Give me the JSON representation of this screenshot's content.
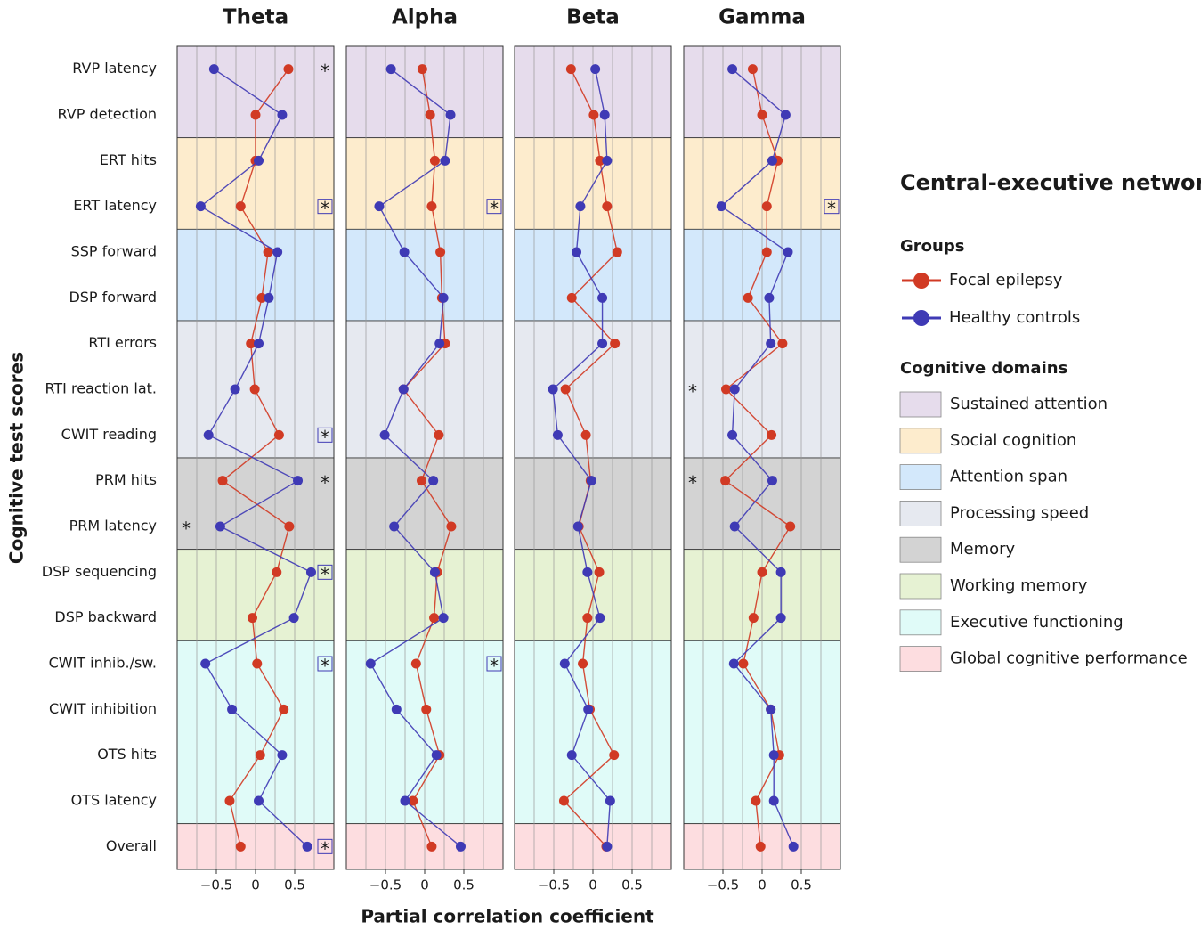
{
  "chart_data": {
    "type": "line",
    "orientation": "horizontal",
    "xlabel": "Partial correlation coefficient",
    "ylabel": "Cognitive test scores",
    "categories": [
      "RVP latency",
      "RVP detection",
      "ERT hits",
      "ERT latency",
      "SSP forward",
      "DSP forward",
      "RTI errors",
      "RTI reaction lat.",
      "CWIT reading",
      "PRM hits",
      "PRM latency",
      "DSP sequencing",
      "DSP backward",
      "CWIT inhib./sw.",
      "CWIT inhibition",
      "OTS hits",
      "OTS latency",
      "Overall"
    ],
    "xlim": [
      -1,
      1
    ],
    "xticks": [
      {
        "value": -0.5,
        "label": "−0.5"
      },
      0,
      0.5
    ],
    "xgrid": [
      -0.75,
      -0.5,
      -0.25,
      0,
      0.25,
      0.5,
      0.75
    ],
    "groups": [
      {
        "name": "Focal epilepsy",
        "color": "#d13a24"
      },
      {
        "name": "Healthy controls",
        "color": "#3f3ab5"
      }
    ],
    "domains": [
      {
        "name": "Sustained attention",
        "color": "#e6dcec",
        "rows": 2
      },
      {
        "name": "Social cognition",
        "color": "#fdeccd",
        "rows": 2
      },
      {
        "name": "Attention span",
        "color": "#d3e8fb",
        "rows": 2
      },
      {
        "name": "Processing speed",
        "color": "#e6e9f0",
        "rows": 3
      },
      {
        "name": "Memory",
        "color": "#d3d3d3",
        "rows": 2
      },
      {
        "name": "Working memory",
        "color": "#e6f2d3",
        "rows": 2
      },
      {
        "name": "Executive functioning",
        "color": "#e0fbf8",
        "rows": 4
      },
      {
        "name": "Global cognitive performance",
        "color": "#fddde0",
        "rows": 1
      }
    ],
    "legend": {
      "title": "Central-executive network",
      "groups_title": "Groups",
      "domains_title": "Cognitive domains"
    },
    "panels": [
      {
        "title": "Theta",
        "series": [
          {
            "values": [
              0.42,
              0,
              0,
              -0.19,
              0.16,
              0.08,
              -0.06,
              -0.01,
              0.3,
              -0.42,
              0.43,
              0.27,
              -0.04,
              0.02,
              0.36,
              0.06,
              -0.33,
              -0.19
            ]
          },
          {
            "values": [
              -0.53,
              0.34,
              0.04,
              -0.7,
              0.28,
              0.17,
              0.04,
              -0.26,
              -0.6,
              0.54,
              -0.45,
              0.71,
              0.49,
              -0.64,
              -0.3,
              0.34,
              0.04,
              0.66
            ]
          }
        ],
        "annotations": [
          {
            "row": 0,
            "series": 1,
            "text": "*",
            "boxed": false
          },
          {
            "row": 3,
            "series": 1,
            "text": "*",
            "boxed": true
          },
          {
            "row": 8,
            "series": 1,
            "text": "*",
            "boxed": true
          },
          {
            "row": 9,
            "series": 1,
            "text": "*",
            "boxed": false
          },
          {
            "row": 10,
            "series": 0,
            "text": "*",
            "boxed": false
          },
          {
            "row": 11,
            "series": 1,
            "text": "*",
            "boxed": true
          },
          {
            "row": 13,
            "series": 1,
            "text": "*",
            "boxed": true
          },
          {
            "row": 17,
            "series": 1,
            "text": "*",
            "boxed": true
          }
        ]
      },
      {
        "title": "Alpha",
        "series": [
          {
            "values": [
              -0.03,
              0.07,
              0.13,
              0.09,
              0.2,
              0.22,
              0.26,
              -0.27,
              0.18,
              -0.04,
              0.34,
              0.16,
              0.12,
              -0.11,
              0.02,
              0.19,
              -0.15,
              0.09
            ]
          },
          {
            "values": [
              -0.43,
              0.33,
              0.26,
              -0.58,
              -0.26,
              0.24,
              0.19,
              -0.27,
              -0.51,
              0.11,
              -0.39,
              0.13,
              0.24,
              -0.69,
              -0.36,
              0.15,
              -0.25,
              0.46
            ]
          }
        ],
        "annotations": [
          {
            "row": 3,
            "series": 1,
            "text": "*",
            "boxed": true
          },
          {
            "row": 13,
            "series": 1,
            "text": "*",
            "boxed": true
          }
        ]
      },
      {
        "title": "Beta",
        "series": [
          {
            "values": [
              -0.28,
              0.01,
              0.09,
              0.18,
              0.31,
              -0.27,
              0.28,
              -0.35,
              -0.09,
              -0.03,
              -0.18,
              0.08,
              -0.07,
              -0.13,
              -0.04,
              0.27,
              -0.37,
              0.17
            ]
          },
          {
            "values": [
              0.03,
              0.15,
              0.18,
              -0.16,
              -0.21,
              0.12,
              0.12,
              -0.51,
              -0.45,
              -0.02,
              -0.19,
              -0.07,
              0.09,
              -0.36,
              -0.06,
              -0.27,
              0.22,
              0.18
            ]
          }
        ],
        "annotations": []
      },
      {
        "title": "Gamma",
        "series": [
          {
            "values": [
              -0.12,
              0,
              0.2,
              0.06,
              0.06,
              -0.18,
              0.26,
              -0.46,
              0.12,
              -0.47,
              0.36,
              0,
              -0.11,
              -0.24,
              0.11,
              0.22,
              -0.08,
              -0.02
            ]
          },
          {
            "values": [
              -0.38,
              0.3,
              0.13,
              -0.52,
              0.33,
              0.09,
              0.11,
              -0.35,
              -0.38,
              0.13,
              -0.35,
              0.24,
              0.24,
              -0.36,
              0.11,
              0.15,
              0.15,
              0.4
            ]
          }
        ],
        "annotations": [
          {
            "row": 3,
            "series": 1,
            "text": "*",
            "boxed": true
          },
          {
            "row": 7,
            "series": 0,
            "text": "*",
            "boxed": false
          },
          {
            "row": 9,
            "series": 0,
            "text": "*",
            "boxed": false
          }
        ]
      }
    ]
  }
}
